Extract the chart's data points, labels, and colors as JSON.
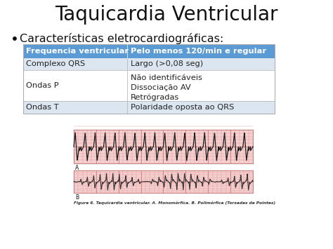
{
  "title": "Taquicardia Ventricular",
  "bullet_text": "Características eletrocardiográficas:",
  "table": {
    "header": [
      "Frequencia ventricular",
      "Pelo menos 120/min e regular"
    ],
    "rows": [
      [
        "Complexo QRS",
        "Largo (>0,08 seg)"
      ],
      [
        "Ondas P",
        "Não identificáveis\nDissociação AV\nRetrógradas"
      ],
      [
        "Ondas T",
        "Polaridade oposta ao QRS"
      ]
    ],
    "header_bg": "#5b9bd5",
    "header_fg": "#ffffff",
    "row_bg_odd": "#dce6f1",
    "row_bg_even": "#ffffff",
    "border_color": "#b0b0b0"
  },
  "ecg_caption": "Figura 6. Taquicardia ventricular. A. Monomórfica. B. Polimórfica (Torsades de Pointes)",
  "bg_color": "#ffffff",
  "title_fontsize": 20,
  "bullet_fontsize": 11.5,
  "table_fontsize": 8.2
}
